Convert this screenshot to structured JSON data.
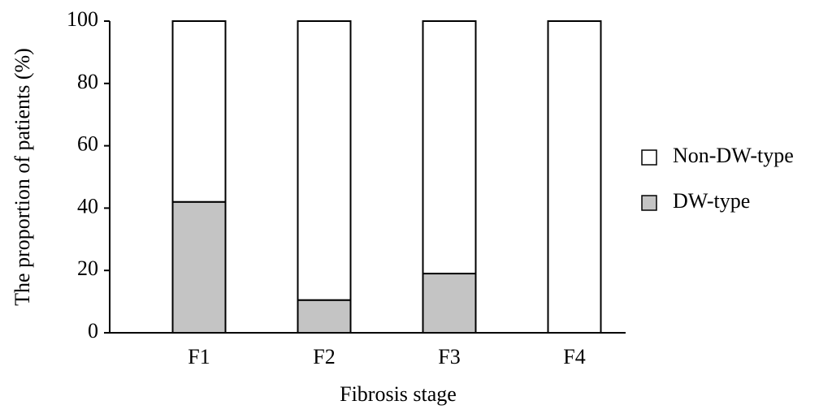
{
  "chart_data": {
    "type": "stacked_bar",
    "x_label": "Fibrosis stage",
    "y_label": "The proportion of patients (%)",
    "categories": [
      "F1",
      "F2",
      "F3",
      "F4"
    ],
    "series": [
      {
        "name": "DW-type",
        "color": "#c4c4c4",
        "values": [
          42,
          10.5,
          19,
          0
        ]
      },
      {
        "name": "Non-DW-type",
        "color": "#ffffff",
        "values": [
          58,
          89.5,
          81,
          100
        ]
      }
    ],
    "ylim": [
      0,
      100
    ],
    "yticks": [
      0,
      20,
      40,
      60,
      80,
      100
    ],
    "grid": false,
    "legend": "right"
  }
}
